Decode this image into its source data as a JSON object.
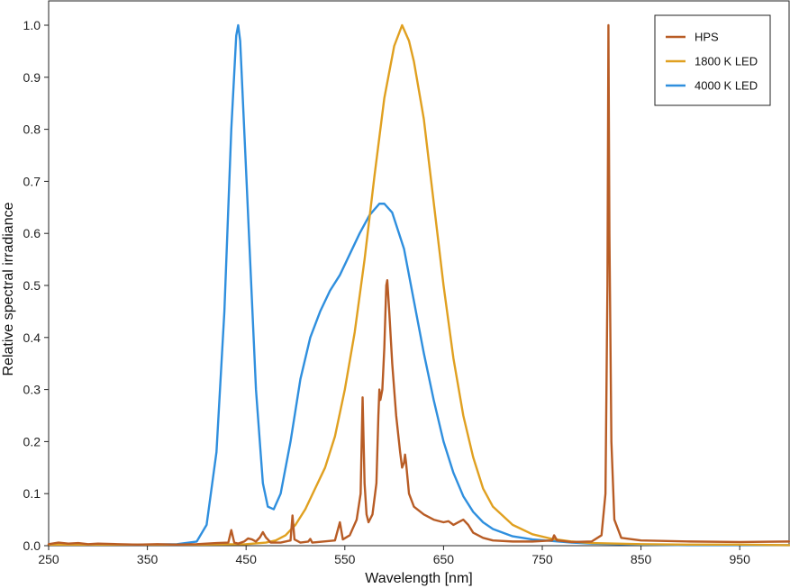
{
  "chart_data": {
    "type": "line",
    "title": "",
    "xlabel": "Wavelength [nm]",
    "ylabel": "Relative spectral irradiance",
    "xlim": [
      250,
      1000
    ],
    "ylim": [
      0,
      1.0
    ],
    "x_ticks": [
      250,
      350,
      450,
      550,
      650,
      750,
      850,
      950
    ],
    "y_ticks": [
      0.0,
      0.1,
      0.2,
      0.3,
      0.4,
      0.5,
      0.6,
      0.7,
      0.8,
      0.9,
      1.0
    ],
    "x_tick_labels": [
      "250",
      "350",
      "450",
      "550",
      "650",
      "750",
      "850",
      "950"
    ],
    "y_tick_labels": [
      "0.0",
      "0.1",
      "0.2",
      "0.3",
      "0.4",
      "0.5",
      "0.6",
      "0.7",
      "0.8",
      "0.9",
      "1.0"
    ],
    "grid": false,
    "legend_position": "top-right",
    "series": [
      {
        "name": "HPS",
        "color": "#b85c25",
        "points": [
          [
            250,
            0.003
          ],
          [
            260,
            0.006
          ],
          [
            270,
            0.004
          ],
          [
            280,
            0.005
          ],
          [
            290,
            0.003
          ],
          [
            300,
            0.004
          ],
          [
            320,
            0.003
          ],
          [
            340,
            0.002
          ],
          [
            360,
            0.003
          ],
          [
            380,
            0.002
          ],
          [
            400,
            0.003
          ],
          [
            420,
            0.005
          ],
          [
            432,
            0.006
          ],
          [
            435,
            0.03
          ],
          [
            438,
            0.006
          ],
          [
            442,
            0.004
          ],
          [
            448,
            0.008
          ],
          [
            452,
            0.014
          ],
          [
            456,
            0.012
          ],
          [
            460,
            0.008
          ],
          [
            464,
            0.016
          ],
          [
            467,
            0.026
          ],
          [
            470,
            0.016
          ],
          [
            475,
            0.006
          ],
          [
            485,
            0.006
          ],
          [
            495,
            0.01
          ],
          [
            497,
            0.058
          ],
          [
            499,
            0.012
          ],
          [
            505,
            0.006
          ],
          [
            513,
            0.008
          ],
          [
            515,
            0.013
          ],
          [
            517,
            0.006
          ],
          [
            540,
            0.01
          ],
          [
            545,
            0.045
          ],
          [
            548,
            0.012
          ],
          [
            555,
            0.02
          ],
          [
            562,
            0.05
          ],
          [
            566,
            0.1
          ],
          [
            568,
            0.285
          ],
          [
            570,
            0.12
          ],
          [
            572,
            0.06
          ],
          [
            574,
            0.045
          ],
          [
            578,
            0.06
          ],
          [
            582,
            0.12
          ],
          [
            584,
            0.25
          ],
          [
            585,
            0.3
          ],
          [
            586,
            0.28
          ],
          [
            588,
            0.3
          ],
          [
            590,
            0.38
          ],
          [
            592,
            0.5
          ],
          [
            593,
            0.51
          ],
          [
            595,
            0.45
          ],
          [
            598,
            0.35
          ],
          [
            602,
            0.25
          ],
          [
            606,
            0.18
          ],
          [
            608,
            0.15
          ],
          [
            610,
            0.16
          ],
          [
            611,
            0.175
          ],
          [
            612,
            0.16
          ],
          [
            615,
            0.1
          ],
          [
            620,
            0.075
          ],
          [
            630,
            0.06
          ],
          [
            640,
            0.05
          ],
          [
            650,
            0.045
          ],
          [
            655,
            0.047
          ],
          [
            660,
            0.04
          ],
          [
            665,
            0.045
          ],
          [
            670,
            0.05
          ],
          [
            675,
            0.04
          ],
          [
            680,
            0.025
          ],
          [
            690,
            0.015
          ],
          [
            700,
            0.01
          ],
          [
            720,
            0.008
          ],
          [
            740,
            0.008
          ],
          [
            760,
            0.01
          ],
          [
            762,
            0.02
          ],
          [
            765,
            0.01
          ],
          [
            780,
            0.007
          ],
          [
            800,
            0.008
          ],
          [
            810,
            0.02
          ],
          [
            814,
            0.1
          ],
          [
            816,
            0.5
          ],
          [
            817,
            1.0
          ],
          [
            818,
            0.6
          ],
          [
            820,
            0.2
          ],
          [
            823,
            0.05
          ],
          [
            830,
            0.015
          ],
          [
            850,
            0.01
          ],
          [
            900,
            0.008
          ],
          [
            950,
            0.007
          ],
          [
            1000,
            0.008
          ]
        ]
      },
      {
        "name": "1800 K LED",
        "color": "#e0a020",
        "points": [
          [
            250,
            0.002
          ],
          [
            300,
            0.002
          ],
          [
            350,
            0.002
          ],
          [
            400,
            0.002
          ],
          [
            450,
            0.003
          ],
          [
            470,
            0.006
          ],
          [
            480,
            0.01
          ],
          [
            490,
            0.02
          ],
          [
            500,
            0.04
          ],
          [
            510,
            0.07
          ],
          [
            520,
            0.11
          ],
          [
            530,
            0.15
          ],
          [
            540,
            0.21
          ],
          [
            550,
            0.3
          ],
          [
            560,
            0.41
          ],
          [
            570,
            0.55
          ],
          [
            580,
            0.71
          ],
          [
            590,
            0.86
          ],
          [
            600,
            0.96
          ],
          [
            608,
            1.0
          ],
          [
            615,
            0.97
          ],
          [
            620,
            0.93
          ],
          [
            630,
            0.82
          ],
          [
            640,
            0.66
          ],
          [
            650,
            0.5
          ],
          [
            660,
            0.36
          ],
          [
            670,
            0.25
          ],
          [
            680,
            0.17
          ],
          [
            690,
            0.11
          ],
          [
            700,
            0.075
          ],
          [
            720,
            0.04
          ],
          [
            740,
            0.022
          ],
          [
            760,
            0.013
          ],
          [
            780,
            0.008
          ],
          [
            800,
            0.005
          ],
          [
            850,
            0.003
          ],
          [
            900,
            0.002
          ],
          [
            950,
            0.002
          ],
          [
            1000,
            0.001
          ]
        ]
      },
      {
        "name": "4000 K LED",
        "color": "#2f8fde",
        "points": [
          [
            250,
            0.002
          ],
          [
            300,
            0.002
          ],
          [
            350,
            0.002
          ],
          [
            380,
            0.003
          ],
          [
            400,
            0.008
          ],
          [
            410,
            0.04
          ],
          [
            420,
            0.18
          ],
          [
            428,
            0.45
          ],
          [
            435,
            0.8
          ],
          [
            440,
            0.98
          ],
          [
            442,
            1.0
          ],
          [
            444,
            0.97
          ],
          [
            450,
            0.72
          ],
          [
            460,
            0.3
          ],
          [
            467,
            0.12
          ],
          [
            472,
            0.075
          ],
          [
            478,
            0.07
          ],
          [
            485,
            0.1
          ],
          [
            495,
            0.2
          ],
          [
            505,
            0.32
          ],
          [
            515,
            0.4
          ],
          [
            525,
            0.45
          ],
          [
            535,
            0.49
          ],
          [
            545,
            0.52
          ],
          [
            555,
            0.56
          ],
          [
            565,
            0.6
          ],
          [
            575,
            0.635
          ],
          [
            585,
            0.657
          ],
          [
            590,
            0.657
          ],
          [
            598,
            0.64
          ],
          [
            610,
            0.57
          ],
          [
            620,
            0.47
          ],
          [
            630,
            0.37
          ],
          [
            640,
            0.28
          ],
          [
            650,
            0.2
          ],
          [
            660,
            0.14
          ],
          [
            670,
            0.095
          ],
          [
            680,
            0.065
          ],
          [
            690,
            0.045
          ],
          [
            700,
            0.032
          ],
          [
            720,
            0.018
          ],
          [
            740,
            0.012
          ],
          [
            760,
            0.009
          ],
          [
            780,
            0.006
          ],
          [
            800,
            0.004
          ],
          [
            850,
            0.002
          ],
          [
            900,
            0.001
          ],
          [
            1000,
            0.001
          ]
        ]
      }
    ]
  }
}
